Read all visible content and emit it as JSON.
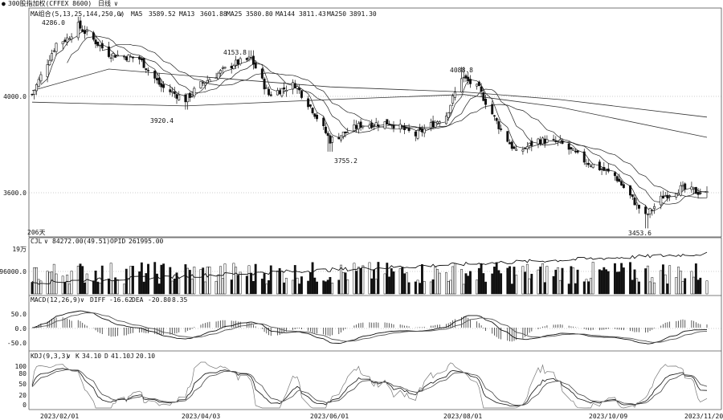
{
  "window": {
    "title": "300股指加权(CFFEX 8600)",
    "period": "日线",
    "period_arrow": "∨",
    "legend_dot": "●"
  },
  "main_panel": {
    "indicator_label": "MA组合(5,13,25,144,250,0)",
    "indicator_arrow": "∨",
    "ma_values": [
      {
        "label": "MA5",
        "value": "3589.52"
      },
      {
        "label": "MA13",
        "value": "3601.88"
      },
      {
        "label": "MA25",
        "value": "3580.80"
      },
      {
        "label": "MA144",
        "value": "3811.43"
      },
      {
        "label": "MA250",
        "value": "3891.30"
      }
    ],
    "y_ticks": [
      "4000.0",
      "3600.0"
    ],
    "annotations": [
      "4286.0",
      "4153.8",
      "3920.4",
      "3755.2",
      "4088.8",
      "3453.6"
    ],
    "days_label": "206天"
  },
  "oi_panel": {
    "indicator_label": "CJL",
    "indicator_arrow": "∨",
    "values": [
      {
        "label": "",
        "value": "84272.00(49.51)"
      },
      {
        "label": "OPID",
        "value": "261995.00"
      }
    ],
    "y_ticks": [
      "19万",
      "96000.0"
    ]
  },
  "macd_panel": {
    "indicator_label": "MACD(12,26,9)",
    "indicator_arrow": "∨",
    "values": [
      {
        "label": "DIFF",
        "value": "-16.62"
      },
      {
        "label": "DEA",
        "value": "-20.80"
      },
      {
        "label": "",
        "value": "8.35"
      }
    ],
    "y_ticks": [
      "50.0",
      "0.0",
      "-50.0"
    ]
  },
  "kdj_panel": {
    "indicator_label": "KDJ(9,3,3)",
    "indicator_arrow": "∨",
    "values": [
      {
        "label": "K",
        "value": "34.10"
      },
      {
        "label": "D",
        "value": "41.10"
      },
      {
        "label": "J",
        "value": "20.10"
      }
    ],
    "y_ticks": [
      "100",
      "80",
      "50",
      "20",
      "0"
    ]
  },
  "x_axis": {
    "labels": [
      "2023/02/01",
      "2023/04/03",
      "2023/06/01",
      "2023/08/01",
      "2023/10/09",
      "2023/11/20"
    ]
  },
  "chart_data": {
    "type": "candlestick",
    "x_range": [
      "2023/01/16",
      "2023/11/20"
    ],
    "ylim_price": [
      3420,
      4320
    ],
    "key_points": [
      {
        "date": "2023/01/16",
        "close": 3980
      },
      {
        "date": "2023/01/27",
        "close": 4180
      },
      {
        "date": "2023/02/01",
        "close": 4200
      },
      {
        "date": "2023/02/06",
        "high": 4286.0,
        "close": 4250
      },
      {
        "date": "2023/02/20",
        "close": 4140
      },
      {
        "date": "2023/03/06",
        "close": 4120
      },
      {
        "date": "2023/03/16",
        "close": 4010
      },
      {
        "date": "2023/03/27",
        "low": 3920.4,
        "close": 3960
      },
      {
        "date": "2023/04/03",
        "close": 4020
      },
      {
        "date": "2023/04/18",
        "close": 4100
      },
      {
        "date": "2023/04/26",
        "high": 4153.8,
        "close": 4120
      },
      {
        "date": "2023/05/04",
        "close": 3980
      },
      {
        "date": "2023/05/16",
        "close": 4020
      },
      {
        "date": "2023/05/24",
        "close": 3920
      },
      {
        "date": "2023/06/01",
        "low": 3755.2,
        "close": 3800
      },
      {
        "date": "2023/06/15",
        "close": 3860
      },
      {
        "date": "2023/06/28",
        "close": 3870
      },
      {
        "date": "2023/07/10",
        "close": 3820
      },
      {
        "date": "2023/07/24",
        "close": 3900
      },
      {
        "date": "2023/07/31",
        "high": 4088.8,
        "close": 4050
      },
      {
        "date": "2023/08/08",
        "close": 4000
      },
      {
        "date": "2023/08/18",
        "close": 3840
      },
      {
        "date": "2023/08/25",
        "close": 3750
      },
      {
        "date": "2023/09/04",
        "close": 3800
      },
      {
        "date": "2023/09/14",
        "close": 3790
      },
      {
        "date": "2023/09/25",
        "close": 3720
      },
      {
        "date": "2023/10/09",
        "close": 3660
      },
      {
        "date": "2023/10/23",
        "low": 3453.6,
        "close": 3500
      },
      {
        "date": "2023/10/31",
        "close": 3580
      },
      {
        "date": "2023/11/08",
        "close": 3610
      },
      {
        "date": "2023/11/20",
        "close": 3589.52
      }
    ],
    "ma144_points": [
      {
        "date": "2023/01/16",
        "value": 3950
      },
      {
        "date": "2023/03/27",
        "value": 3935
      },
      {
        "date": "2023/06/01",
        "value": 3960
      },
      {
        "date": "2023/08/01",
        "value": 3980
      },
      {
        "date": "2023/09/14",
        "value": 3930
      },
      {
        "date": "2023/11/20",
        "value": 3811.43
      }
    ],
    "ma250_points": [
      {
        "date": "2023/01/16",
        "value": 3995
      },
      {
        "date": "2023/02/20",
        "value": 4080
      },
      {
        "date": "2023/04/03",
        "value": 4050
      },
      {
        "date": "2023/06/01",
        "value": 4010
      },
      {
        "date": "2023/08/01",
        "value": 3990
      },
      {
        "date": "2023/09/14",
        "value": 3960
      },
      {
        "date": "2023/11/20",
        "value": 3891.3
      }
    ],
    "oi_ylim": [
      60000,
      210000
    ],
    "macd_ylim": [
      -80,
      80
    ],
    "kdj_ylim": [
      0,
      110
    ]
  }
}
